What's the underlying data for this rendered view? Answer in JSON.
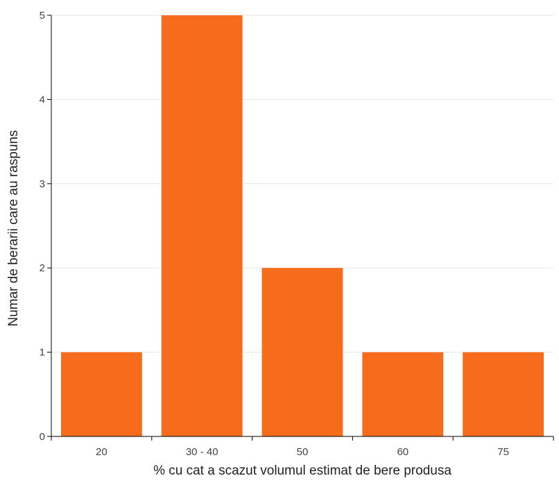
{
  "chart_data": {
    "type": "bar",
    "categories": [
      "20",
      "30 - 40",
      "50",
      "60",
      "75"
    ],
    "values": [
      1,
      5,
      2,
      1,
      1
    ],
    "xlabel": "% cu cat a scazut volumul estimat de bere produsa",
    "ylabel": "Numar de berarii care au raspuns",
    "ylim": [
      0,
      5
    ],
    "yticks": [
      0,
      1,
      2,
      3,
      4,
      5
    ],
    "grid": true,
    "colors": {
      "bar": "#F76B1C",
      "grid": "#E6E6E6",
      "axis": "#000000"
    }
  }
}
